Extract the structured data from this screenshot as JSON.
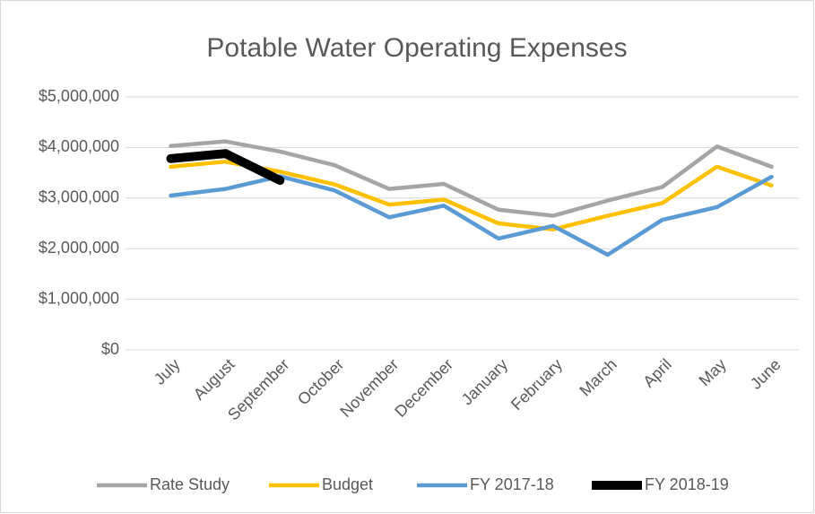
{
  "chart_data": {
    "type": "line",
    "title": "Potable Water Operating Expenses",
    "categories": [
      "July",
      "August",
      "September",
      "October",
      "November",
      "December",
      "January",
      "February",
      "March",
      "April",
      "May",
      "June"
    ],
    "series": [
      {
        "name": "Rate Study",
        "color": "#a5a5a5",
        "values": [
          4030000,
          4120000,
          3920000,
          3650000,
          3180000,
          3280000,
          2770000,
          2650000,
          2950000,
          3220000,
          4020000,
          3620000
        ]
      },
      {
        "name": "Budget",
        "color": "#ffc000",
        "values": [
          3620000,
          3720000,
          3520000,
          3270000,
          2870000,
          2970000,
          2500000,
          2380000,
          2650000,
          2900000,
          3620000,
          3250000
        ]
      },
      {
        "name": "FY 2017-18",
        "color": "#5b9bd5",
        "values": [
          3050000,
          3180000,
          3430000,
          3150000,
          2620000,
          2850000,
          2200000,
          2450000,
          1880000,
          2570000,
          2820000,
          3420000
        ]
      },
      {
        "name": "FY 2018-19",
        "color": "#000000",
        "values": [
          3780000,
          3880000,
          3350000,
          null,
          null,
          null,
          null,
          null,
          null,
          null,
          null,
          null
        ]
      }
    ],
    "ylim": [
      0,
      5000000
    ],
    "yticks": [
      {
        "value": 0,
        "label": "$0"
      },
      {
        "value": 1000000,
        "label": "$1,000,000"
      },
      {
        "value": 2000000,
        "label": "$2,000,000"
      },
      {
        "value": 3000000,
        "label": "$3,000,000"
      },
      {
        "value": 4000000,
        "label": "$4,000,000"
      },
      {
        "value": 5000000,
        "label": "$5,000,000"
      }
    ],
    "grid": true,
    "legend": "bottom"
  }
}
